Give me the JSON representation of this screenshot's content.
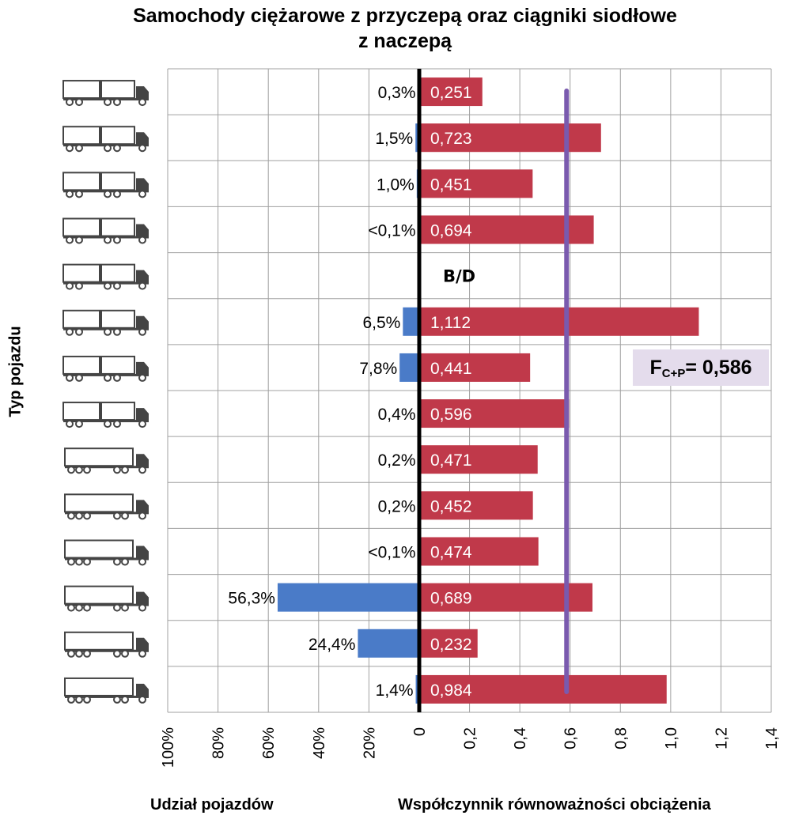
{
  "chart_data": {
    "type": "bar",
    "title_line1": "Samochody  ciężarowe z przyczepą oraz ciągniki siodłowe",
    "title_line2": "z naczepą",
    "ylabel": "Typ  pojazdu",
    "xlabel_left": "Udział pojazdów",
    "xlabel_right": "Współczynnik równoważności  obciążenia",
    "left_ticks": [
      "100%",
      "80%",
      "60%",
      "40%",
      "20%"
    ],
    "right_ticks": [
      "0",
      "0,2",
      "0,4",
      "0,6",
      "0,8",
      "1,0",
      "1,2",
      "1,4"
    ],
    "left_xlim": [
      0,
      100
    ],
    "right_xlim": [
      0,
      1.4
    ],
    "grid": true,
    "categories": [
      "1",
      "2",
      "3",
      "4",
      "5",
      "6",
      "7",
      "8",
      "9",
      "10",
      "11",
      "12",
      "13",
      "14"
    ],
    "series": [
      {
        "name": "Udział pojazdów",
        "color": "#4a7bc8",
        "values": [
          0.3,
          1.5,
          1.0,
          0.05,
          null,
          6.5,
          7.8,
          0.4,
          0.2,
          0.2,
          0.05,
          56.3,
          24.4,
          1.4
        ],
        "labels": [
          "0,3%",
          "1,5%",
          "1,0%",
          "<0,1%",
          "",
          "6,5%",
          "7,8%",
          "0,4%",
          "0,2%",
          "0,2%",
          "<0,1%",
          "56,3%",
          "24,4%",
          "1,4%"
        ]
      },
      {
        "name": "Współczynnik równoważności obciążenia",
        "color": "#c0394a",
        "values": [
          0.251,
          0.723,
          0.451,
          0.694,
          null,
          1.112,
          0.441,
          0.596,
          0.471,
          0.452,
          0.474,
          0.689,
          0.232,
          0.984
        ],
        "labels": [
          "0,251",
          "0,723",
          "0,451",
          "0,694",
          "",
          "1,112",
          "0,441",
          "0,596",
          "0,471",
          "0,452",
          "0,474",
          "0,689",
          "0,232",
          "0,984"
        ]
      }
    ],
    "missing_label": "B/D",
    "reference_line": {
      "value": 0.586,
      "color": "#7a5aae"
    },
    "annotation": {
      "prefix": "F",
      "sub": "C+P",
      "text": "= 0,586"
    },
    "vehicle_icons": [
      "truck-trailer-icon",
      "truck-trailer-icon",
      "truck-trailer-icon",
      "truck-trailer-icon",
      "truck-trailer-icon",
      "truck-trailer-icon",
      "truck-trailer-icon",
      "truck-trailer-icon",
      "semi-trailer-icon",
      "semi-trailer-icon",
      "semi-trailer-icon",
      "semi-trailer-icon",
      "semi-trailer-icon",
      "semi-trailer-icon"
    ]
  }
}
